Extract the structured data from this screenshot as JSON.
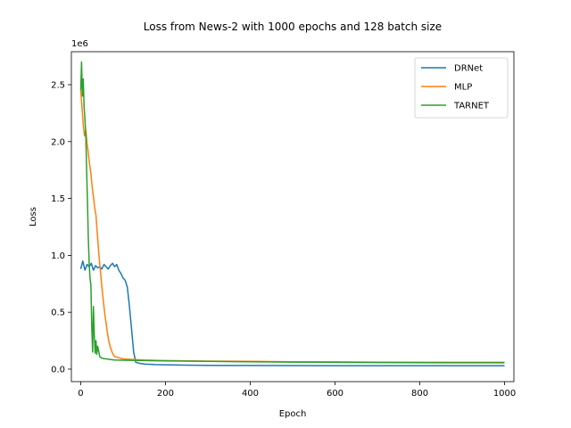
{
  "chart_data": {
    "type": "line",
    "title": "Loss from News-2 with 1000 epochs and 128 batch size",
    "xlabel": "Epoch",
    "ylabel": "Loss",
    "y_offset_text": "1e6",
    "xlim": [
      -22,
      1022
    ],
    "ylim": [
      -0.11,
      2.79
    ],
    "y_scale_factor": 1000000,
    "xticks": [
      0,
      200,
      400,
      600,
      800,
      1000
    ],
    "xtick_labels": [
      "0",
      "200",
      "400",
      "600",
      "800",
      "1000"
    ],
    "yticks": [
      0.0,
      0.5,
      1.0,
      1.5,
      2.0,
      2.5
    ],
    "ytick_labels": [
      "0.0",
      "0.5",
      "1.0",
      "1.5",
      "2.0",
      "2.5"
    ],
    "grid": false,
    "legend_position": "top-right",
    "series": [
      {
        "name": "DRNet",
        "color": "#1f77b4",
        "x": [
          0,
          5,
          10,
          15,
          20,
          25,
          30,
          35,
          40,
          45,
          50,
          55,
          60,
          65,
          70,
          75,
          80,
          85,
          90,
          95,
          100,
          105,
          110,
          115,
          120,
          125,
          130,
          140,
          150,
          175,
          200,
          250,
          300,
          400,
          500,
          600,
          700,
          800,
          900,
          1000
        ],
        "values": [
          0.88,
          0.95,
          0.87,
          0.92,
          0.9,
          0.93,
          0.87,
          0.91,
          0.89,
          0.9,
          0.88,
          0.92,
          0.9,
          0.88,
          0.91,
          0.93,
          0.9,
          0.92,
          0.87,
          0.84,
          0.8,
          0.78,
          0.72,
          0.55,
          0.35,
          0.15,
          0.06,
          0.05,
          0.045,
          0.04,
          0.038,
          0.035,
          0.033,
          0.032,
          0.031,
          0.03,
          0.03,
          0.03,
          0.03,
          0.03
        ]
      },
      {
        "name": "MLP",
        "color": "#ff7f0e",
        "x": [
          0,
          3,
          6,
          9,
          12,
          15,
          18,
          21,
          24,
          27,
          30,
          33,
          36,
          39,
          42,
          45,
          48,
          51,
          54,
          57,
          60,
          63,
          66,
          70,
          75,
          80,
          90,
          100,
          120,
          150,
          200,
          300,
          400,
          500,
          600,
          700,
          800,
          900,
          1000
        ],
        "values": [
          2.45,
          2.3,
          2.15,
          2.05,
          2.1,
          1.98,
          1.9,
          1.8,
          1.72,
          1.6,
          1.52,
          1.42,
          1.35,
          1.2,
          1.05,
          0.92,
          0.8,
          0.68,
          0.58,
          0.48,
          0.4,
          0.32,
          0.25,
          0.19,
          0.14,
          0.11,
          0.1,
          0.09,
          0.085,
          0.08,
          0.075,
          0.07,
          0.068,
          0.065,
          0.063,
          0.062,
          0.061,
          0.06,
          0.06
        ]
      },
      {
        "name": "TARNET",
        "color": "#2ca02c",
        "x": [
          0,
          2,
          4,
          6,
          8,
          10,
          12,
          14,
          16,
          18,
          20,
          22,
          24,
          26,
          28,
          30,
          32,
          34,
          36,
          38,
          40,
          45,
          50,
          60,
          70,
          80,
          100,
          150,
          200,
          300,
          400,
          500,
          600,
          700,
          800,
          900,
          1000
        ],
        "values": [
          2.45,
          2.7,
          2.4,
          2.55,
          2.3,
          2.2,
          2.05,
          1.75,
          1.45,
          1.15,
          0.92,
          0.8,
          0.74,
          0.38,
          0.15,
          0.55,
          0.3,
          0.14,
          0.25,
          0.13,
          0.2,
          0.11,
          0.095,
          0.09,
          0.085,
          0.08,
          0.078,
          0.075,
          0.072,
          0.068,
          0.065,
          0.062,
          0.06,
          0.058,
          0.056,
          0.055,
          0.055
        ]
      }
    ]
  }
}
